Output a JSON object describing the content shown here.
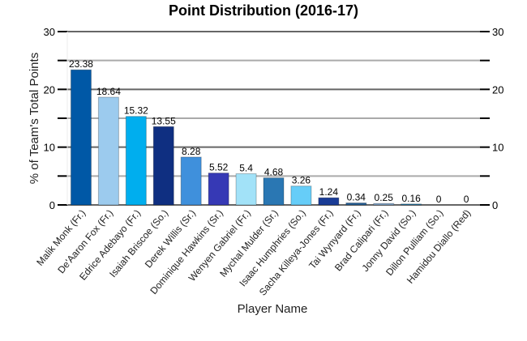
{
  "chart_data": {
    "type": "bar",
    "title": "Point Distribution (2016-17)",
    "xlabel": "Player Name",
    "ylabel": "% of Team's Total Points",
    "ylim": [
      0,
      30
    ],
    "yticks": [
      0,
      10,
      20,
      30
    ],
    "minor_yticks": [
      5,
      15,
      25
    ],
    "grid": true,
    "right_axis": true,
    "categories": [
      "Malik Monk (Fr.)",
      "De'Aaron Fox (Fr.)",
      "Edrice Adebayo (Fr.)",
      "Isaiah Briscoe (So.)",
      "Derek Willis (Sr.)",
      "Dominique Hawkins (Sr.)",
      "Wenyen Gabriel (Fr.)",
      "Mychal Mulder (Sr.)",
      "Isaac Humphries (So.)",
      "Sacha Killeya-Jones (Fr.)",
      "Tai Wynyard (Fr.)",
      "Brad Calipari (Fr.)",
      "Jonny David (So.)",
      "Dillon Pulliam (So.)",
      "Hamidou Diallo (Red)"
    ],
    "values": [
      23.38,
      18.64,
      15.32,
      13.55,
      8.28,
      5.52,
      5.4,
      4.68,
      3.26,
      1.24,
      0.34,
      0.25,
      0.16,
      0,
      0
    ],
    "value_labels": [
      "23.38",
      "18.64",
      "15.32",
      "13.55",
      "8.28",
      "5.52",
      "5.4",
      "4.68",
      "3.26",
      "1.24",
      "0.34",
      "0.25",
      "0.16",
      "0",
      "0"
    ],
    "colors": [
      "#0058a6",
      "#9ccbee",
      "#00aeee",
      "#0f2f81",
      "#3f90dc",
      "#3639b5",
      "#a2e2f8",
      "#2a77b3",
      "#66cdf8",
      "#1a3c96",
      "#245f96",
      "#7fa6cc",
      "#2a7cad",
      "#5a7fa8",
      "#3c6aa0"
    ]
  }
}
